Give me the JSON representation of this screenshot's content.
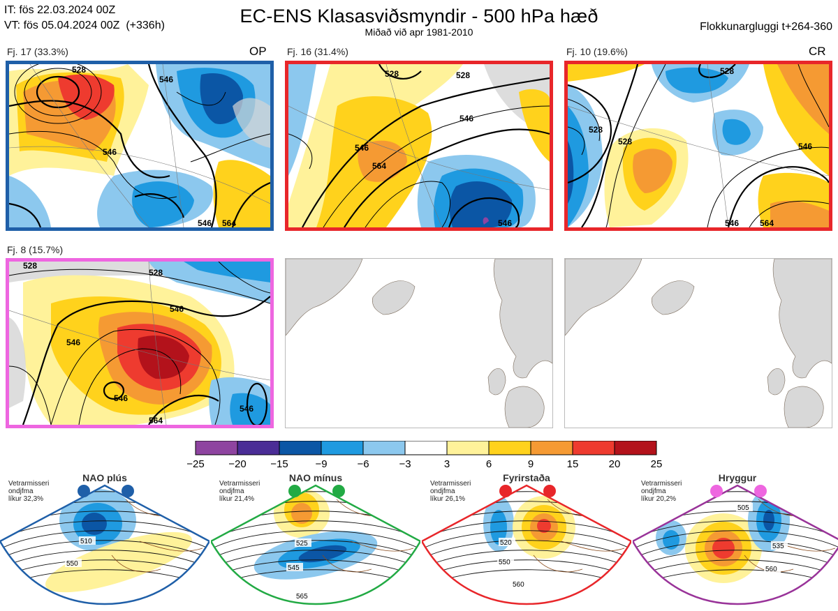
{
  "header": {
    "it_line": "IT: fös 22.03.2024 00Z",
    "vt_line": "VT: fös 05.04.2024 00Z  (+336h)",
    "title": "EC-ENS Klasasviðsmyndir - 500 hPa hæð",
    "subtitle": "Miðað við apr 1981-2010",
    "window": "Flokkunargluggi t+264-360"
  },
  "colors": {
    "op_border": "#1f5fa8",
    "fj16_border": "#e8262a",
    "cr_border": "#e8262a",
    "fj8_border": "#ee66e0",
    "nao_plus": "#1f5fa8",
    "nao_minus": "#22aa44",
    "blocking": "#e8262a",
    "ridge": "#993399"
  },
  "panels": [
    {
      "label": "Fj. 17 (33.3%)",
      "tag": "OP",
      "contours": [
        "528",
        "546",
        "546",
        "564",
        "546"
      ]
    },
    {
      "label": "Fj. 16 (31.4%)",
      "tag": "",
      "contours": [
        "528",
        "528",
        "546",
        "546",
        "564",
        "546"
      ]
    },
    {
      "label": "Fj. 10 (19.6%)",
      "tag": "CR",
      "contours": [
        "528",
        "528",
        "528",
        "546",
        "546",
        "564"
      ]
    },
    {
      "label": "Fj. 8 (15.7%)",
      "tag": "",
      "contours": [
        "528",
        "528",
        "546",
        "546",
        "546",
        "546",
        "564"
      ]
    }
  ],
  "colorbar": {
    "ticks": [
      "−25",
      "−20",
      "−15",
      "−9",
      "−6",
      "−3",
      "3",
      "6",
      "9",
      "15",
      "20",
      "25"
    ],
    "colors": [
      "#8e44a0",
      "#4a2d96",
      "#0b56a5",
      "#1f9ae0",
      "#8cc8ee",
      "#ffffff",
      "#fff29a",
      "#ffd21c",
      "#f59a33",
      "#ee3b2f",
      "#b3121b"
    ]
  },
  "regimes": [
    {
      "name": "NAO plús",
      "note": [
        "Vetrarmisseri",
        "ondjfma",
        "líkur 32,3%"
      ],
      "contours": [
        "510",
        "550"
      ]
    },
    {
      "name": "NAO mínus",
      "note": [
        "Vetrarmisseri",
        "ondjfma",
        "líkur 21,4%"
      ],
      "contours": [
        "525",
        "545",
        "565"
      ]
    },
    {
      "name": "Fyrirstaða",
      "note": [
        "Vetrarmisseri",
        "ondjfma",
        "líkur 26,1%"
      ],
      "contours": [
        "520",
        "550",
        "560"
      ]
    },
    {
      "name": "Hryggur",
      "note": [
        "Vetrarmisseri",
        "ondjfma",
        "líkur 20,2%"
      ],
      "contours": [
        "505",
        "535",
        "560"
      ]
    }
  ],
  "chart_data": {
    "type": "heatmap",
    "title": "EC-ENS Klasasviðsmyndir - 500 hPa hæð",
    "clusters": [
      {
        "name": "Fj. 17",
        "probability_pct": 33.3,
        "tag": "OP"
      },
      {
        "name": "Fj. 16",
        "probability_pct": 31.4,
        "tag": ""
      },
      {
        "name": "Fj. 10",
        "probability_pct": 19.6,
        "tag": "CR"
      },
      {
        "name": "Fj. 8",
        "probability_pct": 15.7,
        "tag": ""
      }
    ],
    "anomaly_levels": [
      -25,
      -20,
      -15,
      -9,
      -6,
      -3,
      3,
      6,
      9,
      15,
      20,
      25
    ],
    "contour_levels": [
      528,
      546,
      564
    ],
    "regimes": [
      {
        "name": "NAO plús",
        "probability_pct": 32.3
      },
      {
        "name": "NAO mínus",
        "probability_pct": 21.4
      },
      {
        "name": "Fyrirstaða",
        "probability_pct": 26.1
      },
      {
        "name": "Hryggur",
        "probability_pct": 20.2
      }
    ]
  }
}
